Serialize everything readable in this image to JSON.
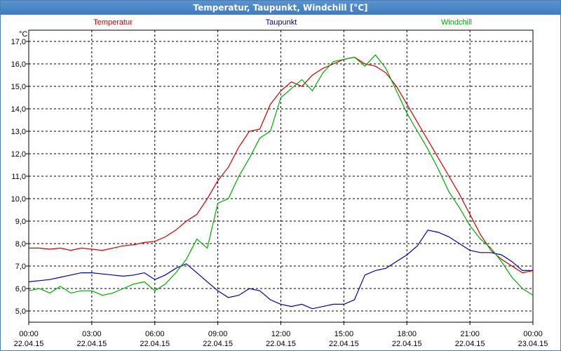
{
  "window": {
    "title": "Temperatur, Taupunkt, Windchill [°C]"
  },
  "chart_data": {
    "type": "line",
    "title": "Temperatur, Taupunkt, Windchill [°C]",
    "ylabel": "°C",
    "ylim": [
      4.5,
      17.5
    ],
    "y_ticks": [
      "5,0",
      "6,0",
      "7,0",
      "8,0",
      "9,0",
      "10,0",
      "11,0",
      "12,0",
      "13,0",
      "14,0",
      "15,0",
      "16,0",
      "17,0"
    ],
    "x_ticks": [
      {
        "time": "00:00",
        "date": "22.04.15"
      },
      {
        "time": "03:00",
        "date": "22.04.15"
      },
      {
        "time": "06:00",
        "date": "22.04.15"
      },
      {
        "time": "09:00",
        "date": "22.04.15"
      },
      {
        "time": "12:00",
        "date": "22.04.15"
      },
      {
        "time": "15:00",
        "date": "22.04.15"
      },
      {
        "time": "18:00",
        "date": "22.04.15"
      },
      {
        "time": "21:00",
        "date": "22.04.15"
      },
      {
        "time": "00:00",
        "date": "23.04.15"
      }
    ],
    "grid": true,
    "series": [
      {
        "name": "Temperatur",
        "color": "#cc0000",
        "x": [
          0,
          0.5,
          1,
          1.5,
          2,
          2.5,
          3,
          3.5,
          4,
          4.5,
          5,
          5.5,
          6,
          6.5,
          7,
          7.5,
          8,
          8.5,
          9,
          9.5,
          10,
          10.5,
          11,
          11.5,
          12,
          12.5,
          13,
          13.5,
          14,
          14.5,
          15,
          15.5,
          16,
          16.5,
          17,
          17.5,
          18,
          18.5,
          19,
          19.5,
          20,
          20.5,
          21,
          21.5,
          22,
          22.5,
          23,
          23.5,
          24
        ],
        "values": [
          7.8,
          7.8,
          7.75,
          7.8,
          7.7,
          7.8,
          7.75,
          7.7,
          7.8,
          7.9,
          7.95,
          8.05,
          8.1,
          8.3,
          8.6,
          9.0,
          9.3,
          10.0,
          10.8,
          11.4,
          12.3,
          13.0,
          13.1,
          14.2,
          14.8,
          15.2,
          15.0,
          15.5,
          15.8,
          16.0,
          16.2,
          16.3,
          16.0,
          15.9,
          15.6,
          15.0,
          14.2,
          13.4,
          12.6,
          11.8,
          11.0,
          10.2,
          9.3,
          8.4,
          7.7,
          7.3,
          7.0,
          6.7,
          6.8
        ]
      },
      {
        "name": "Taupunkt",
        "color": "#0000aa",
        "x": [
          0,
          0.5,
          1,
          1.5,
          2,
          2.5,
          3,
          3.5,
          4,
          4.5,
          5,
          5.5,
          6,
          6.5,
          7,
          7.5,
          8,
          8.5,
          9,
          9.5,
          10,
          10.5,
          11,
          11.5,
          12,
          12.5,
          13,
          13.5,
          14,
          14.5,
          15,
          15.5,
          16,
          16.5,
          17,
          17.5,
          18,
          18.5,
          19,
          19.5,
          20,
          20.5,
          21,
          21.5,
          22,
          22.5,
          23,
          23.5,
          24
        ],
        "values": [
          6.3,
          6.35,
          6.4,
          6.5,
          6.6,
          6.7,
          6.7,
          6.65,
          6.6,
          6.55,
          6.6,
          6.7,
          6.4,
          6.6,
          6.9,
          7.1,
          6.7,
          6.3,
          5.9,
          5.6,
          5.7,
          6.0,
          5.9,
          5.5,
          5.3,
          5.2,
          5.3,
          5.1,
          5.2,
          5.3,
          5.3,
          5.5,
          6.6,
          6.8,
          6.9,
          7.2,
          7.5,
          7.9,
          8.6,
          8.5,
          8.3,
          8.0,
          7.7,
          7.6,
          7.6,
          7.5,
          7.2,
          6.8,
          6.8
        ]
      },
      {
        "name": "Windchill",
        "color": "#00aa00",
        "x": [
          0,
          0.5,
          1,
          1.5,
          2,
          2.5,
          3,
          3.5,
          4,
          4.5,
          5,
          5.5,
          6,
          6.5,
          7,
          7.5,
          8,
          8.5,
          9,
          9.5,
          10,
          10.5,
          11,
          11.5,
          12,
          12.5,
          13,
          13.5,
          14,
          14.5,
          15,
          15.5,
          16,
          16.5,
          17,
          17.5,
          18,
          18.5,
          19,
          19.5,
          20,
          20.5,
          21,
          21.5,
          22,
          22.5,
          23,
          23.5,
          24
        ],
        "values": [
          5.9,
          6.0,
          5.8,
          6.1,
          5.8,
          5.9,
          5.9,
          5.7,
          5.8,
          6.0,
          6.2,
          6.3,
          5.9,
          6.2,
          6.7,
          7.3,
          8.2,
          7.8,
          9.8,
          10.0,
          11.0,
          11.8,
          12.7,
          13.0,
          14.5,
          14.9,
          15.3,
          14.8,
          15.6,
          16.1,
          16.2,
          16.3,
          15.9,
          16.4,
          15.8,
          14.8,
          13.8,
          13.0,
          12.2,
          11.3,
          10.3,
          9.6,
          8.8,
          8.2,
          7.8,
          7.2,
          6.5,
          6.0,
          5.7
        ]
      }
    ]
  }
}
